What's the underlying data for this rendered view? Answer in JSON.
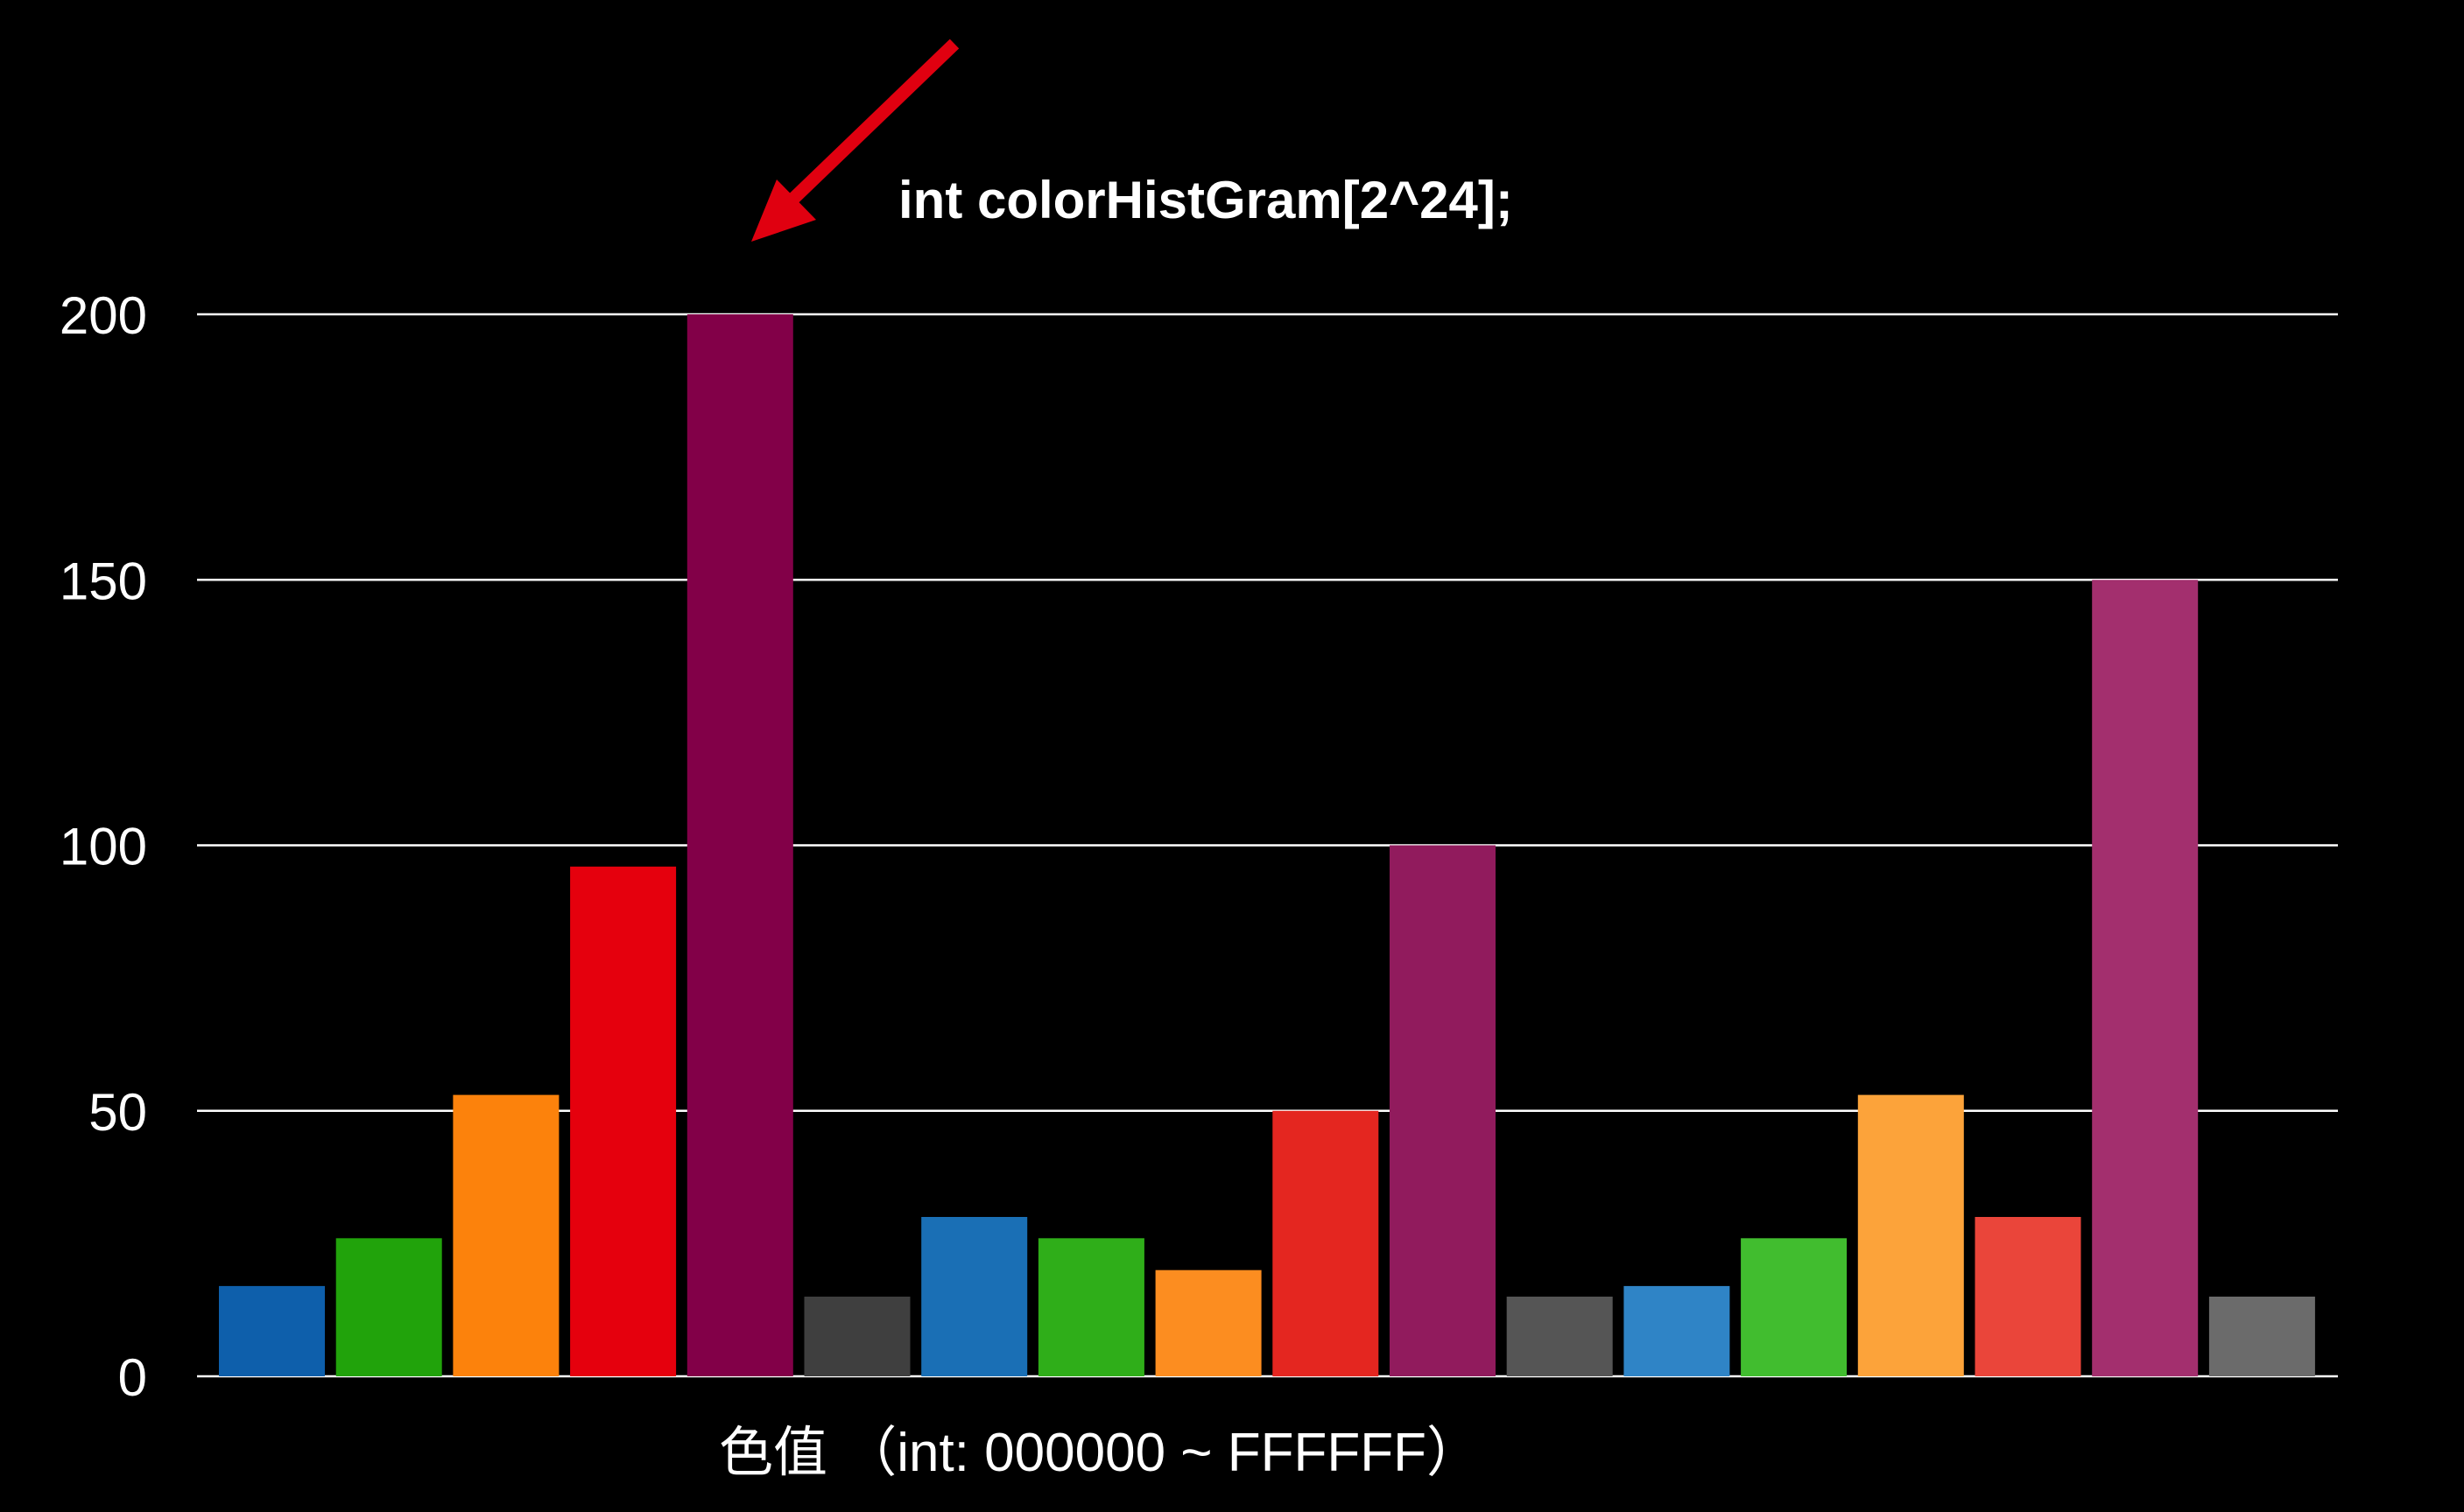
{
  "chart_data": {
    "type": "bar",
    "annotation": "int colorHistGram[2^24];",
    "xlabel": "色值 （int: 000000 ~ FFFFFF）",
    "ylabel": "",
    "ylim": [
      0,
      200
    ],
    "yticks": [
      0,
      50,
      100,
      150,
      200
    ],
    "grid": true,
    "values": [
      17,
      26,
      53,
      96,
      200,
      15,
      30,
      26,
      20,
      50,
      100,
      15,
      17,
      26,
      53,
      30,
      150,
      15
    ],
    "colors": [
      "#0e5fab",
      "#21a30b",
      "#fc820c",
      "#e5000d",
      "#820048",
      "#3f3f3f",
      "#1a6fb5",
      "#2fae19",
      "#fc8d20",
      "#e42620",
      "#911b5d",
      "#555555",
      "#2f84c6",
      "#41bd2f",
      "#fca33a",
      "#ea453a",
      "#a32f6e",
      "#6b6b6b"
    ]
  },
  "colors": {
    "background": "#000000",
    "text": "#ffffff",
    "gridline": "#ffffff",
    "arrow": "#e00010"
  }
}
